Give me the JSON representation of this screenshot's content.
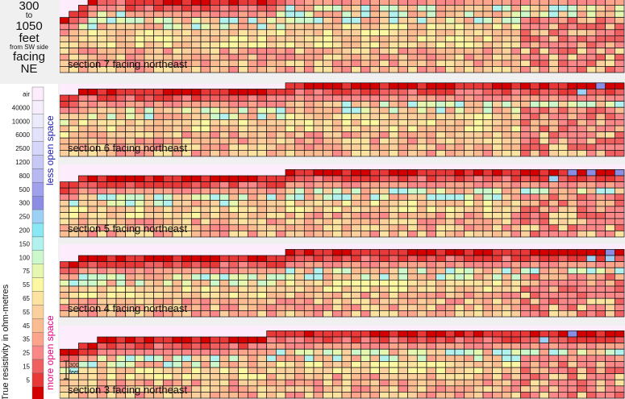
{
  "header": {
    "line1": "300",
    "line2": "to",
    "line3": "1050",
    "line4": "feet",
    "line5": "from SW side",
    "line6": "facing",
    "line7": "NE"
  },
  "legend": {
    "axis_label": "True resistivity in ohm-metres",
    "top_label": "less open space",
    "bottom_label": "more open space",
    "top_color": "#1a1ab4",
    "bottom_color": "#e6007e",
    "entries": [
      {
        "label": "air",
        "color": "#fcecfc"
      },
      {
        "label": "40000",
        "color": "#f6eefc"
      },
      {
        "label": "10000",
        "color": "#ecebfc"
      },
      {
        "label": "6000",
        "color": "#e2e2fc"
      },
      {
        "label": "2500",
        "color": "#d6d6fa"
      },
      {
        "label": "1200",
        "color": "#c8c8f6"
      },
      {
        "label": "800",
        "color": "#b8b8f2"
      },
      {
        "label": "500",
        "color": "#a0a0ec"
      },
      {
        "label": "300",
        "color": "#8c8ce4"
      },
      {
        "label": "250",
        "color": "#9cd0f4"
      },
      {
        "label": "200",
        "color": "#88e8f4"
      },
      {
        "label": "150",
        "color": "#b2f2ee"
      },
      {
        "label": "100",
        "color": "#ccf8cc"
      },
      {
        "label": "75",
        "color": "#e6f8b0"
      },
      {
        "label": "55",
        "color": "#fcf8a2"
      },
      {
        "label": "65",
        "color": "#fce4a0"
      },
      {
        "label": "55",
        "color": "#fcd09c"
      },
      {
        "label": "45",
        "color": "#fcbc92"
      },
      {
        "label": "35",
        "color": "#fca48c"
      },
      {
        "label": "25",
        "color": "#fa8888"
      },
      {
        "label": "15",
        "color": "#f06060"
      },
      {
        "label": "5",
        "color": "#e83838"
      },
      {
        "label": "",
        "color": "#d40000"
      }
    ]
  },
  "scale_bar": {
    "line1": "300",
    "line2": "feet"
  },
  "chart_data": [
    {
      "type": "heatmap",
      "label": "section 7 facing northeast",
      "surface": [
        9,
        10,
        11,
        12,
        13,
        13,
        13,
        12,
        12,
        12,
        12,
        12,
        12,
        12,
        12,
        12,
        12,
        12,
        12,
        12,
        12,
        12,
        12,
        13,
        14,
        14,
        14,
        14,
        14,
        14,
        14,
        14,
        14,
        14,
        14,
        14,
        14,
        14,
        14,
        14,
        14,
        14,
        14,
        14,
        14,
        14,
        14,
        14,
        14,
        14,
        14,
        14,
        14,
        14,
        14,
        14,
        14,
        14,
        14,
        14
      ],
      "seed": 7
    },
    {
      "type": "heatmap",
      "label": "section 6 facing northeast",
      "surface": [
        10,
        10,
        11,
        11,
        11,
        11,
        11,
        11,
        11,
        11,
        11,
        11,
        11,
        11,
        11,
        11,
        11,
        11,
        11,
        11,
        11,
        11,
        11,
        11,
        12,
        12,
        12,
        12,
        12,
        12,
        12,
        12,
        12,
        12,
        12,
        12,
        12,
        12,
        12,
        12,
        12,
        12,
        12,
        12,
        12,
        12,
        12,
        12,
        12,
        12,
        12,
        12,
        12,
        12,
        12,
        12,
        12,
        12,
        12,
        12
      ],
      "seed": 6
    },
    {
      "type": "heatmap",
      "label": "section 5 facing northeast",
      "surface": [
        9,
        9,
        10,
        10,
        10,
        10,
        10,
        10,
        10,
        10,
        10,
        10,
        10,
        10,
        10,
        10,
        10,
        10,
        10,
        10,
        10,
        10,
        10,
        10,
        11,
        11,
        11,
        11,
        11,
        11,
        11,
        11,
        11,
        11,
        11,
        11,
        11,
        11,
        11,
        11,
        11,
        11,
        11,
        11,
        11,
        11,
        11,
        11,
        11,
        11,
        11,
        11,
        11,
        11,
        11,
        11,
        11,
        11,
        11,
        11
      ],
      "seed": 5
    },
    {
      "type": "heatmap",
      "label": "section 4 facing northeast",
      "surface": [
        9,
        9,
        10,
        10,
        10,
        10,
        10,
        10,
        10,
        10,
        10,
        10,
        10,
        10,
        10,
        10,
        10,
        10,
        10,
        10,
        10,
        10,
        10,
        10,
        11,
        11,
        11,
        11,
        11,
        11,
        11,
        11,
        11,
        11,
        11,
        11,
        11,
        11,
        11,
        11,
        11,
        11,
        11,
        11,
        11,
        11,
        11,
        11,
        11,
        11,
        11,
        11,
        11,
        11,
        11,
        11,
        11,
        11,
        11,
        11
      ],
      "seed": 4
    },
    {
      "type": "heatmap",
      "label": "section 3 facing northeast",
      "surface": [
        8,
        8,
        9,
        9,
        10,
        10,
        10,
        10,
        10,
        10,
        10,
        10,
        10,
        10,
        10,
        10,
        10,
        10,
        10,
        10,
        10,
        10,
        11,
        11,
        11,
        11,
        11,
        11,
        11,
        11,
        11,
        11,
        11,
        11,
        11,
        11,
        11,
        11,
        11,
        11,
        11,
        11,
        11,
        11,
        11,
        11,
        11,
        11,
        11,
        11,
        11,
        11,
        11,
        11,
        11,
        11,
        11,
        11,
        11,
        11
      ],
      "seed": 3
    }
  ]
}
